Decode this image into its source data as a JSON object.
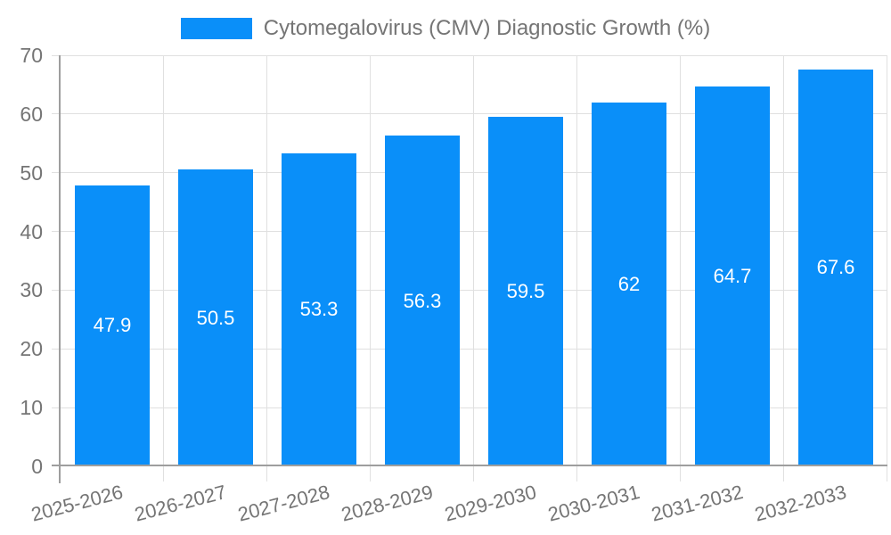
{
  "chart_data": {
    "type": "bar",
    "title": "",
    "legend": {
      "label": "Cytomegalovirus (CMV) Diagnostic Growth (%)",
      "position": "top"
    },
    "categories": [
      "2025-2026",
      "2026-2027",
      "2027-2028",
      "2028-2029",
      "2029-2030",
      "2030-2031",
      "2031-2032",
      "2032-2033"
    ],
    "values": [
      47.9,
      50.5,
      53.3,
      56.3,
      59.5,
      62,
      64.7,
      67.6
    ],
    "xlabel": "",
    "ylabel": "",
    "ylim": [
      0,
      70
    ],
    "y_ticks": [
      0,
      10,
      20,
      30,
      40,
      50,
      60,
      70
    ],
    "grid": true,
    "x_label_rotation_deg": -14.5,
    "colors": {
      "bar": "#0a8ff9",
      "bar_label": "#ffffff",
      "axis_text": "#757575",
      "grid": "#e0e0e0",
      "axis_line": "#9e9e9e",
      "background": "#ffffff"
    }
  }
}
